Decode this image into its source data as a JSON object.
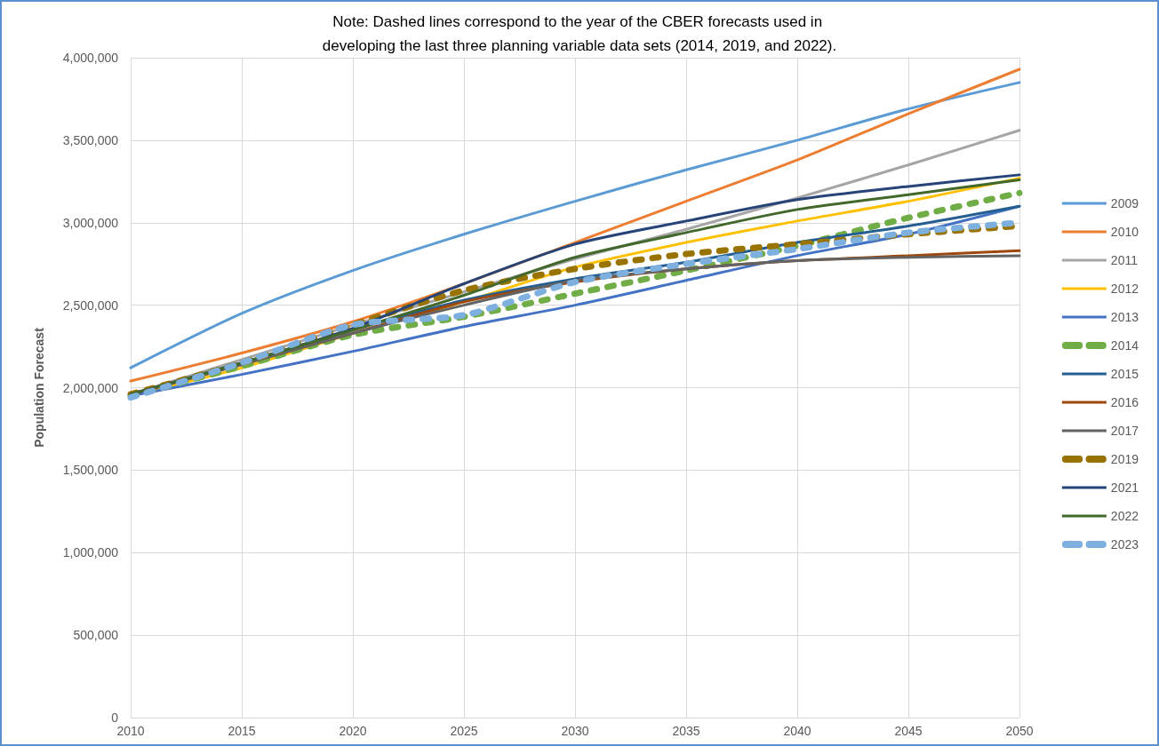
{
  "chart_data": {
    "type": "line",
    "title": "Note: Dashed lines correspond to the year of the CBER forecasts used in developing the last three planning variable data sets (2014, 2019, and 2022).",
    "ylabel": "Population Forecast",
    "x": [
      2010,
      2015,
      2020,
      2025,
      2030,
      2035,
      2040,
      2045,
      2050
    ],
    "xlim": [
      2010,
      2050
    ],
    "xticks": [
      2010,
      2015,
      2020,
      2025,
      2030,
      2035,
      2040,
      2045,
      2050
    ],
    "ylim": [
      0,
      4000000
    ],
    "yticks": [
      0,
      {
        "value": 500000,
        "label": "500,000"
      },
      {
        "value": 1000000,
        "label": "1,000,000"
      },
      {
        "value": 1500000,
        "label": "1,500,000"
      },
      {
        "value": 2000000,
        "label": "2,000,000"
      },
      {
        "value": 2500000,
        "label": "2,500,000"
      },
      {
        "value": 3000000,
        "label": "3,000,000"
      },
      {
        "value": 3500000,
        "label": "3,500,000"
      },
      {
        "value": 4000000,
        "label": "4,000,000"
      }
    ],
    "grid": true,
    "legend": "right",
    "marker": "none",
    "line_style": "solid",
    "series": [
      {
        "name": "2009",
        "color": "#5b9bd5",
        "values": [
          2120000,
          2450000,
          2710000,
          2930000,
          3130000,
          3320000,
          3500000,
          3690000,
          3850000
        ]
      },
      {
        "name": "2010",
        "color": "#ed7d31",
        "values": [
          2040000,
          2210000,
          2400000,
          2630000,
          2880000,
          3130000,
          3380000,
          3660000,
          3930000
        ]
      },
      {
        "name": "2011",
        "color": "#a5a5a5",
        "values": [
          1960000,
          2170000,
          2380000,
          2580000,
          2780000,
          2960000,
          3150000,
          3350000,
          3560000
        ]
      },
      {
        "name": "2012",
        "color": "#ffc000",
        "values": [
          1950000,
          2120000,
          2330000,
          2520000,
          2730000,
          2880000,
          3010000,
          3130000,
          3270000
        ]
      },
      {
        "name": "2013",
        "color": "#4472c4",
        "values": [
          1950000,
          2080000,
          2220000,
          2370000,
          2500000,
          2650000,
          2800000,
          2930000,
          3100000
        ]
      },
      {
        "name": "2014",
        "color": "#70ad47",
        "line_style": "dashed",
        "values": [
          1950000,
          2130000,
          2320000,
          2430000,
          2570000,
          2710000,
          2860000,
          3030000,
          3180000
        ]
      },
      {
        "name": "2015",
        "color": "#255e91",
        "values": [
          1960000,
          2150000,
          2350000,
          2530000,
          2660000,
          2760000,
          2880000,
          2980000,
          3100000
        ]
      },
      {
        "name": "2016",
        "color": "#9e480e",
        "values": [
          1960000,
          2140000,
          2330000,
          2520000,
          2640000,
          2720000,
          2770000,
          2800000,
          2830000
        ]
      },
      {
        "name": "2017",
        "color": "#636363",
        "values": [
          1960000,
          2140000,
          2330000,
          2500000,
          2650000,
          2720000,
          2770000,
          2790000,
          2800000
        ]
      },
      {
        "name": "2019",
        "color": "#997300",
        "line_style": "dashed",
        "values": [
          1960000,
          2150000,
          2380000,
          2590000,
          2720000,
          2810000,
          2870000,
          2930000,
          2980000
        ]
      },
      {
        "name": "2021",
        "color": "#264478",
        "values": [
          1960000,
          2150000,
          2360000,
          2630000,
          2870000,
          3010000,
          3140000,
          3220000,
          3290000
        ]
      },
      {
        "name": "2022",
        "color": "#43682b",
        "values": [
          1960000,
          2150000,
          2350000,
          2560000,
          2790000,
          2940000,
          3080000,
          3170000,
          3260000
        ]
      },
      {
        "name": "2023",
        "color": "#7eb0df",
        "line_style": "dashed",
        "values": [
          1940000,
          2150000,
          2380000,
          2440000,
          2640000,
          2750000,
          2840000,
          2940000,
          3000000
        ]
      }
    ]
  }
}
